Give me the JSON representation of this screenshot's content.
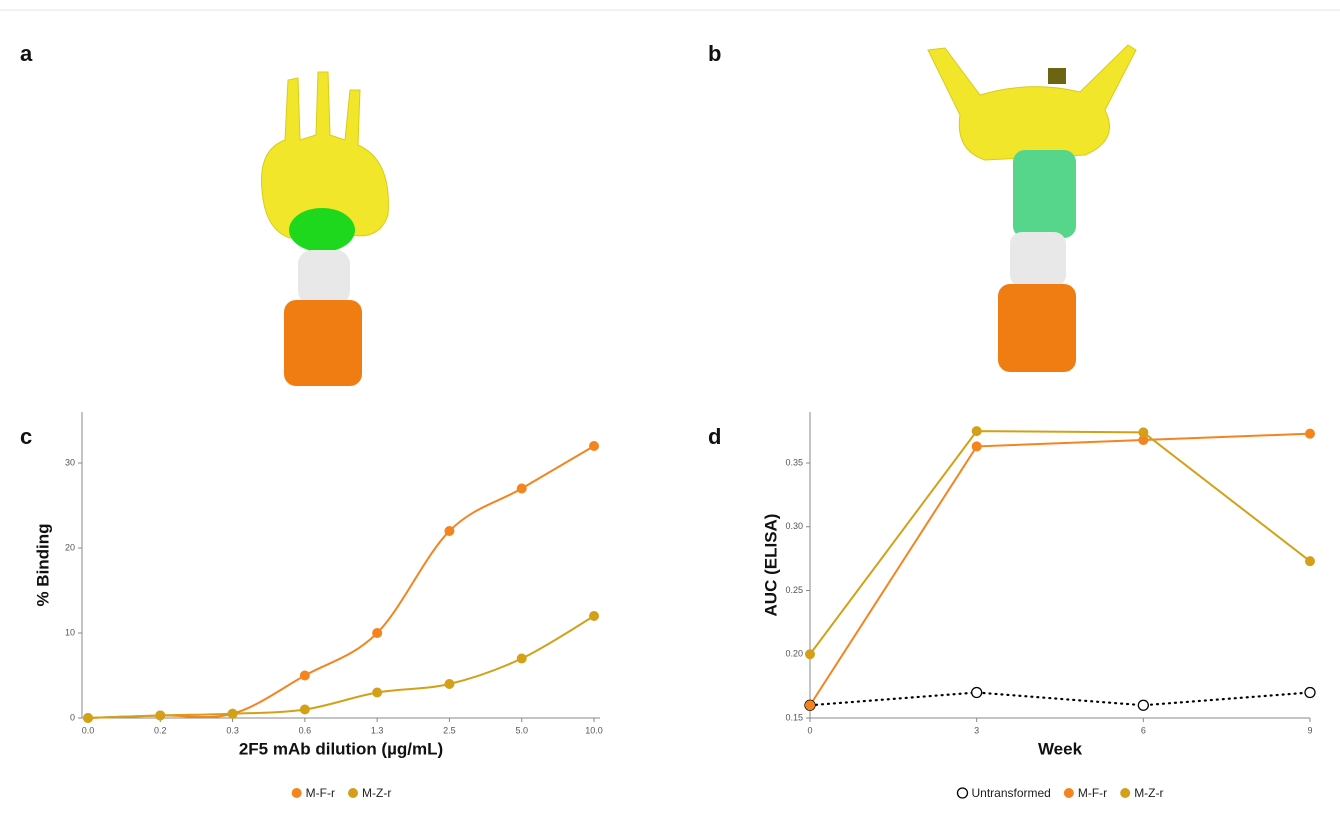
{
  "panel_labels": [
    "a",
    "b",
    "c",
    "d"
  ],
  "chart_data": [
    {
      "type": "line",
      "curve": "smooth",
      "categories": [
        "0.0",
        "0.2",
        "0.3",
        "0.6",
        "1.3",
        "2.5",
        "5.0",
        "10.0"
      ],
      "xlabel": "2F5 mAb dilution (µg/mL)",
      "ylabel": "% Binding",
      "ylim": [
        0,
        36
      ],
      "yticks": [
        0,
        10,
        20,
        30
      ],
      "series": [
        {
          "name": "M-F-r",
          "color": "#f5841f",
          "values": [
            0,
            0.3,
            0.5,
            5,
            10,
            22,
            27,
            32
          ]
        },
        {
          "name": "M-Z-r",
          "color": "#d4a017",
          "values": [
            0,
            0.3,
            0.5,
            1,
            3,
            4,
            7,
            12
          ]
        }
      ]
    },
    {
      "type": "line",
      "curve": "straight",
      "x": [
        0,
        3,
        6,
        9
      ],
      "xlim": [
        0,
        9
      ],
      "xticks": [
        0,
        3,
        6,
        9
      ],
      "xlabel": "Week",
      "ylabel": "AUC (ELISA)",
      "ylim": [
        0.15,
        0.39
      ],
      "yticks": [
        0.15,
        {
          "value": 0.2,
          "label": "0.20"
        },
        0.25,
        {
          "value": 0.3,
          "label": "0.30"
        },
        0.35
      ],
      "series": [
        {
          "name": "Untransformed",
          "color": "#000000",
          "marker_fill": "#ffffff",
          "line_style": "dotted",
          "values": [
            0.16,
            0.17,
            0.16,
            0.17
          ]
        },
        {
          "name": "M-F-r",
          "color": "#f5841f",
          "values": [
            0.16,
            0.363,
            0.368,
            0.373
          ]
        },
        {
          "name": "M-Z-r",
          "color": "#d4a017",
          "values": [
            0.2,
            0.375,
            0.374,
            0.273
          ]
        }
      ]
    }
  ]
}
